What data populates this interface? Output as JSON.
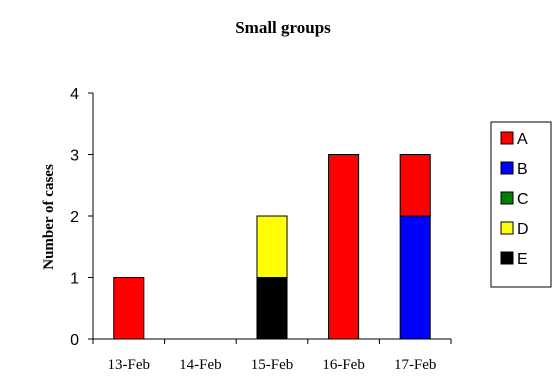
{
  "chart_data": {
    "type": "bar",
    "stacked": true,
    "title": "Small groups",
    "xlabel": "",
    "ylabel": "Number of cases",
    "ylim": [
      0,
      4
    ],
    "yticks": [
      "0",
      "1",
      "2",
      "3",
      "4"
    ],
    "categories": [
      "13-Feb",
      "14-Feb",
      "15-Feb",
      "16-Feb",
      "17-Feb"
    ],
    "grid": false,
    "legend_position": "right",
    "series": [
      {
        "name": "E",
        "color": "#000000",
        "values": [
          0,
          0,
          1,
          0,
          0
        ]
      },
      {
        "name": "D",
        "color": "#ffff00",
        "values": [
          0,
          0,
          1,
          0,
          0
        ]
      },
      {
        "name": "C",
        "color": "#008000",
        "values": [
          0,
          0,
          0,
          0,
          0
        ]
      },
      {
        "name": "B",
        "color": "#0000ff",
        "values": [
          0,
          0,
          0,
          0,
          2
        ]
      },
      {
        "name": "A",
        "color": "#ff0000",
        "values": [
          1,
          0,
          0,
          3,
          1
        ]
      }
    ],
    "legend_order": [
      "A",
      "B",
      "C",
      "D",
      "E"
    ]
  }
}
